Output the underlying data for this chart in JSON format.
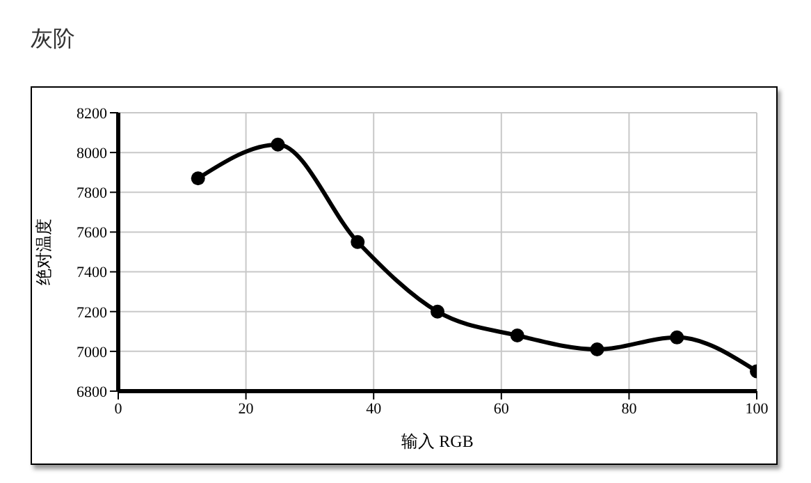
{
  "chart_data": {
    "type": "line",
    "title": "灰阶",
    "xlabel": "输入 RGB",
    "ylabel": "绝对温度",
    "x": [
      12.5,
      25,
      37.5,
      50,
      62.5,
      75,
      87.5,
      100
    ],
    "series": [
      {
        "color": "#000000",
        "values": [
          7870,
          8040,
          7550,
          7200,
          7080,
          7010,
          7070,
          6900
        ]
      }
    ],
    "xlim": [
      0,
      100
    ],
    "xticks": [
      0,
      20,
      40,
      60,
      80,
      100
    ],
    "ylim": [
      6800,
      8200
    ],
    "yticks": [
      6800,
      7000,
      7200,
      7400,
      7600,
      7800,
      8000,
      8200
    ],
    "grid": true,
    "marker": "circle",
    "line_style": "solid"
  }
}
